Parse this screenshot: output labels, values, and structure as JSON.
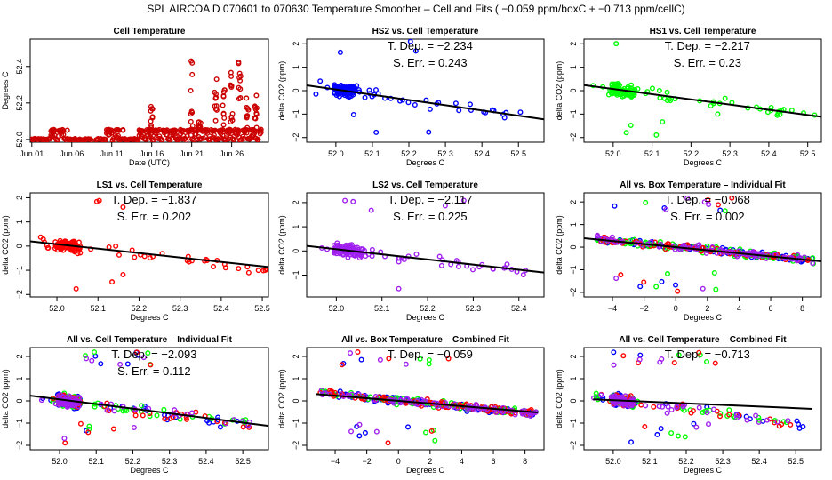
{
  "figure_title": "SPL   AIRCOA D   070601 to 070630   Temperature Smoother – Cell and Fits ( −0.059  ppm/boxC +  −0.713  ppm/cellC)",
  "colors": {
    "HS2": "#0000ff",
    "HS1": "#00ff00",
    "LS1": "#ff0000",
    "LS2": "#a020f0",
    "cell": "#cc0000",
    "fit": "#000000"
  },
  "chart_data": [
    {
      "type": "scatter",
      "title": "Cell Temperature",
      "xlabel": "Date (UTC)",
      "ylabel": "Degrees C",
      "xticks": [
        "Jun 01",
        "Jun 06",
        "Jun 11",
        "Jun 16",
        "Jun 21",
        "Jun 26"
      ],
      "xtick_values": [
        1,
        6,
        11,
        16,
        21,
        26
      ],
      "xlim": [
        0.8,
        30.6
      ],
      "yticks": [
        "52.0",
        "52.2",
        "52.4"
      ],
      "ytick_values": [
        52.0,
        52.2,
        52.4
      ],
      "ylim": [
        51.985,
        52.55
      ],
      "series": [
        {
          "name": "Cell",
          "color_key": "cell",
          "baseline": 52.0,
          "plateaus": [
            [
              3,
              5.5,
              52.05
            ],
            [
              8.5,
              9.5,
              51.96
            ],
            [
              10,
              12.5,
              52.05
            ],
            [
              14,
              19,
              52.05
            ],
            [
              19.5,
              21,
              52.05
            ],
            [
              21,
              30,
              52.05
            ]
          ],
          "spikes": [
            [
              16,
              52.23
            ],
            [
              21,
              52.5
            ],
            [
              22,
              52.1
            ],
            [
              24,
              52.42
            ],
            [
              25,
              52.28
            ],
            [
              26,
              52.38
            ],
            [
              27,
              52.44
            ],
            [
              28,
              52.26
            ],
            [
              29,
              52.26
            ]
          ]
        }
      ]
    },
    {
      "type": "scatter",
      "title": "HS2 vs. Cell Temperature",
      "xlabel": "Degrees C",
      "ylabel": "delta CO2 (ppm)",
      "xticks": [
        "52.0",
        "52.1",
        "52.2",
        "52.3",
        "52.4",
        "52.5"
      ],
      "xtick_values": [
        52.0,
        52.1,
        52.2,
        52.3,
        52.4,
        52.5
      ],
      "xlim": [
        51.92,
        52.57
      ],
      "yticks": [
        "−2",
        "−1",
        "0",
        "1",
        "2"
      ],
      "ytick_values": [
        -2,
        -1,
        0,
        1,
        2
      ],
      "ylim": [
        -2.2,
        2.2
      ],
      "annotation": [
        "T. Dep. =  −2.234",
        "S. Err. =  0.243"
      ],
      "fit": {
        "slope": -2.234,
        "at_x": 52.0,
        "at_y": 0.05
      },
      "series": [
        {
          "name": "HS2",
          "color_key": "HS2"
        }
      ]
    },
    {
      "type": "scatter",
      "title": "HS1 vs. Cell Temperature",
      "xlabel": "Degrees C",
      "ylabel": "delta CO2 (ppm)",
      "xticks": [
        "52.0",
        "52.1",
        "52.2",
        "52.3",
        "52.4",
        "52.5"
      ],
      "xtick_values": [
        52.0,
        52.1,
        52.2,
        52.3,
        52.4,
        52.5
      ],
      "xlim": [
        51.925,
        52.535
      ],
      "yticks": [
        "−2",
        "−1",
        "0",
        "1",
        "2"
      ],
      "ytick_values": [
        -2,
        -1,
        0,
        1,
        2
      ],
      "ylim": [
        -2.2,
        2.2
      ],
      "annotation": [
        "T. Dep. =  −2.217",
        "S. Err. =  0.23"
      ],
      "fit": {
        "slope": -2.217,
        "at_x": 52.0,
        "at_y": 0.07
      },
      "series": [
        {
          "name": "HS1",
          "color_key": "HS1"
        }
      ]
    },
    {
      "type": "scatter",
      "title": "LS1 vs. Cell Temperature",
      "xlabel": "Degrees C",
      "ylabel": "delta CO2 (ppm)",
      "xticks": [
        "52.0",
        "52.1",
        "52.2",
        "52.3",
        "52.4",
        "52.5"
      ],
      "xtick_values": [
        52.0,
        52.1,
        52.2,
        52.3,
        52.4,
        52.5
      ],
      "xlim": [
        51.935,
        52.515
      ],
      "yticks": [
        "−2",
        "−1",
        "0",
        "1",
        "2"
      ],
      "ytick_values": [
        -2,
        -1,
        0,
        1,
        2
      ],
      "ylim": [
        -2.1,
        2.2
      ],
      "annotation": [
        "T. Dep. =  −1.837",
        "S. Err. =  0.202"
      ],
      "fit": {
        "slope": -1.837,
        "at_x": 52.0,
        "at_y": 0.08
      },
      "series": [
        {
          "name": "LS1",
          "color_key": "LS1"
        }
      ]
    },
    {
      "type": "scatter",
      "title": "LS2 vs. Cell Temperature",
      "xlabel": "Degrees C",
      "ylabel": "delta CO2 (ppm)",
      "xticks": [
        "52.0",
        "52.1",
        "52.2",
        "52.3",
        "52.4"
      ],
      "xtick_values": [
        52.0,
        52.1,
        52.2,
        52.3,
        52.4
      ],
      "xlim": [
        51.935,
        52.455
      ],
      "yticks": [
        "−1",
        "0",
        "1",
        "2"
      ],
      "ytick_values": [
        -1,
        0,
        1,
        2
      ],
      "ylim": [
        -1.9,
        2.4
      ],
      "annotation": [
        "T. Dep. =  −2.117",
        "S. Err. =  0.225"
      ],
      "fit": {
        "slope": -2.117,
        "at_x": 52.0,
        "at_y": 0.07
      },
      "series": [
        {
          "name": "LS2",
          "color_key": "LS2"
        }
      ]
    },
    {
      "type": "scatter",
      "title": "All vs. Box Temperature – Individual Fit",
      "xlabel": "Degrees C",
      "ylabel": "delta CO2 (ppm)",
      "xticks": [
        "−4",
        "−2",
        "0",
        "2",
        "4",
        "6",
        "8"
      ],
      "xtick_values": [
        -4,
        -2,
        0,
        2,
        4,
        6,
        8
      ],
      "xlim": [
        -5.8,
        9.2
      ],
      "yticks": [
        "−2",
        "−1",
        "0",
        "1",
        "2"
      ],
      "ytick_values": [
        -2,
        -1,
        0,
        1,
        2
      ],
      "ylim": [
        -2.2,
        2.4
      ],
      "annotation": [
        "T. Dep. =  −0.068",
        "S. Err. =  0.002"
      ],
      "fit": {
        "slope": -0.068,
        "at_x": 0,
        "at_y": 0.0
      },
      "series": [
        {
          "name": "HS2",
          "color_key": "HS2"
        },
        {
          "name": "HS1",
          "color_key": "HS1"
        },
        {
          "name": "LS1",
          "color_key": "LS1"
        },
        {
          "name": "LS2",
          "color_key": "LS2"
        }
      ]
    },
    {
      "type": "scatter",
      "title": "All vs. Cell Temperature – Individual Fit",
      "xlabel": "Degrees C",
      "ylabel": "delta CO2 (ppm)",
      "xticks": [
        "52.0",
        "52.1",
        "52.2",
        "52.3",
        "52.4",
        "52.5"
      ],
      "xtick_values": [
        52.0,
        52.1,
        52.2,
        52.3,
        52.4,
        52.5
      ],
      "xlim": [
        51.92,
        52.57
      ],
      "yticks": [
        "−2",
        "−1",
        "0",
        "1",
        "2"
      ],
      "ytick_values": [
        -2,
        -1,
        0,
        1,
        2
      ],
      "ylim": [
        -2.2,
        2.4
      ],
      "annotation": [
        "T. Dep. =  −2.093",
        "S. Err. =  0.112"
      ],
      "fit": {
        "slope": -2.093,
        "at_x": 52.0,
        "at_y": 0.07
      },
      "series": [
        {
          "name": "HS2",
          "color_key": "HS2"
        },
        {
          "name": "HS1",
          "color_key": "HS1"
        },
        {
          "name": "LS1",
          "color_key": "LS1"
        },
        {
          "name": "LS2",
          "color_key": "LS2"
        }
      ]
    },
    {
      "type": "scatter",
      "title": "All vs. Box Temperature – Combined Fit",
      "xlabel": "Degrees C",
      "ylabel": "delta CO2 (ppm)",
      "xticks": [
        "−4",
        "−2",
        "0",
        "2",
        "4",
        "6",
        "8"
      ],
      "xtick_values": [
        -4,
        -2,
        0,
        2,
        4,
        6,
        8
      ],
      "xlim": [
        -5.8,
        9.2
      ],
      "yticks": [
        "−2",
        "−1",
        "0",
        "1",
        "2"
      ],
      "ytick_values": [
        -2,
        -1,
        0,
        1,
        2
      ],
      "ylim": [
        -2.2,
        2.4
      ],
      "annotation": [
        "T. Dep. =  −0.059"
      ],
      "fit": {
        "slope": -0.059,
        "at_x": 0,
        "at_y": 0.0,
        "x_range": [
          -5.2,
          8.8
        ]
      },
      "series": [
        {
          "name": "HS2",
          "color_key": "HS2"
        },
        {
          "name": "HS1",
          "color_key": "HS1"
        },
        {
          "name": "LS1",
          "color_key": "LS1"
        },
        {
          "name": "LS2",
          "color_key": "LS2"
        }
      ]
    },
    {
      "type": "scatter",
      "title": "All vs. Cell Temperature – Combined Fit",
      "xlabel": "Degrees C",
      "ylabel": "delta CO2 (ppm)",
      "xticks": [
        "52.0",
        "52.1",
        "52.2",
        "52.3",
        "52.4",
        "52.5"
      ],
      "xtick_values": [
        52.0,
        52.1,
        52.2,
        52.3,
        52.4,
        52.5
      ],
      "xlim": [
        51.92,
        52.57
      ],
      "yticks": [
        "−2",
        "−1",
        "0",
        "1",
        "2"
      ],
      "ytick_values": [
        -2,
        -1,
        0,
        1,
        2
      ],
      "ylim": [
        -2.2,
        2.4
      ],
      "annotation": [
        "T. Dep. =  −0.713"
      ],
      "fit": {
        "slope": -0.713,
        "at_x": 52.0,
        "at_y": 0.03,
        "x_range": [
          51.945,
          52.545
        ]
      },
      "series": [
        {
          "name": "HS2",
          "color_key": "HS2"
        },
        {
          "name": "HS1",
          "color_key": "HS1"
        },
        {
          "name": "LS1",
          "color_key": "LS1"
        },
        {
          "name": "LS2",
          "color_key": "LS2"
        }
      ]
    }
  ]
}
